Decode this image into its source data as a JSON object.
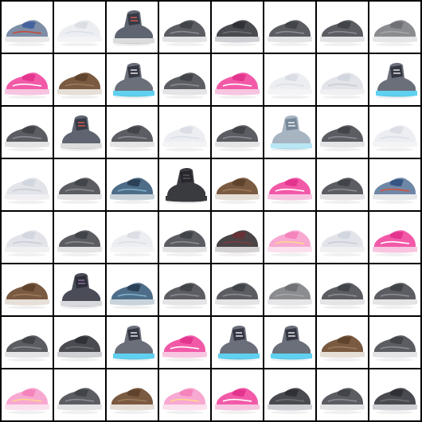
{
  "grid": {
    "rows": 8,
    "cols": 8,
    "background": "#000000",
    "cells": [
      [
        "sneaker-blue-white",
        "sneaker-white-faint",
        "sneaker-gray-red-high",
        "shoe-gray",
        "shoe-dark",
        "shoe-gray",
        "shoe-gray",
        "shoe-light-gray"
      ],
      [
        "sneaker-pink",
        "shoe-brown",
        "sneaker-high-cyan",
        "shoe-gray",
        "sneaker-pink",
        "sneaker-white-faint",
        "sneaker-white",
        "sneaker-high-cyan"
      ],
      [
        "shoe-gray",
        "sneaker-gray-red-high",
        "shoe-gray",
        "sneaker-white-faint",
        "shoe-gray",
        "sneaker-high-cyan-faint",
        "shoe-gray",
        "sneaker-white-faint"
      ],
      [
        "sneaker-white",
        "shoe-gray",
        "sneaker-blue-trail",
        "boot-dark",
        "shoe-brown",
        "sneaker-pink",
        "shoe-gray",
        "sneaker-blue-red"
      ],
      [
        "sneaker-white",
        "shoe-gray",
        "sneaker-white-faint",
        "shoe-gray",
        "shoe-dark-red",
        "sneaker-pink-faint",
        "sneaker-white",
        "sneaker-pink"
      ],
      [
        "shoe-brown",
        "boot-dark-high",
        "sneaker-blue-trail",
        "shoe-gray",
        "shoe-gray",
        "shoe-light-gray",
        "shoe-gray",
        "shoe-gray"
      ],
      [
        "shoe-gray",
        "shoe-dark",
        "sneaker-high-cyan",
        "sneaker-pink",
        "sneaker-high-cyan",
        "sneaker-high-cyan",
        "shoe-brown",
        "shoe-gray"
      ],
      [
        "sneaker-pink-faint",
        "shoe-gray",
        "shoe-brown",
        "sneaker-pink-faint",
        "sneaker-pink",
        "shoe-dark",
        "shoe-gray",
        "shoe-dark"
      ]
    ]
  },
  "palette": {
    "sneaker-blue-white": {
      "upper": "#7d8ea6",
      "accent": "#3c5a9c",
      "sole": "#e8e8ea",
      "trim": "#c84a3a"
    },
    "sneaker-white-faint": {
      "upper": "#eceef2",
      "accent": "#d8dbe2",
      "sole": "#f4f4f6",
      "trim": "#dcdfe6"
    },
    "sneaker-white": {
      "upper": "#e2e4ea",
      "accent": "#cfd3dc",
      "sole": "#f0f0f2",
      "trim": "#c9ccd4"
    },
    "sneaker-gray-red-high": {
      "upper": "#5e6470",
      "accent": "#2f3440",
      "sole": "#dcdcdc",
      "trim": "#d05a50"
    },
    "shoe-gray": {
      "upper": "#5b5d62",
      "accent": "#3d3f44",
      "sole": "#e4e4e6",
      "trim": "#8a8c92"
    },
    "shoe-dark": {
      "upper": "#4a4b50",
      "accent": "#2c2d31",
      "sole": "#cfd0d3",
      "trim": "#6d6e73"
    },
    "shoe-light-gray": {
      "upper": "#8a8c90",
      "accent": "#6a6c70",
      "sole": "#e6e6e8",
      "trim": "#a4a6aa"
    },
    "sneaker-pink": {
      "upper": "#f25aa8",
      "accent": "#e02f8a",
      "sole": "#f7c5e0",
      "trim": "#ffffff"
    },
    "sneaker-pink-faint": {
      "upper": "#f7a9d2",
      "accent": "#f47cb8",
      "sole": "#fbe0ee",
      "trim": "#ffd58a"
    },
    "shoe-brown": {
      "upper": "#7a5a40",
      "accent": "#5a3f2a",
      "sole": "#e6dfd8",
      "trim": "#9c7a5c"
    },
    "sneaker-high-cyan": {
      "upper": "#6b6f7a",
      "accent": "#2c2f38",
      "sole": "#5fd0f0",
      "trim": "#e6e6ea"
    },
    "sneaker-high-cyan-faint": {
      "upper": "#a7b4c2",
      "accent": "#6f8092",
      "sole": "#b8e6f4",
      "trim": "#eef0f2"
    },
    "sneaker-blue-trail": {
      "upper": "#4e6d88",
      "accent": "#26394f",
      "sole": "#c9d3da",
      "trim": "#7fb0c8"
    },
    "sneaker-blue-red": {
      "upper": "#6f87a6",
      "accent": "#2e4c7c",
      "sole": "#e6e8ea",
      "trim": "#d2533e"
    },
    "boot-dark": {
      "upper": "#3a3b3f",
      "accent": "#24252a",
      "sole": "#3a3b3f",
      "trim": "#55565b"
    },
    "boot-dark-high": {
      "upper": "#4a4d58",
      "accent": "#272a33",
      "sole": "#d9dadd",
      "trim": "#8a6ea0"
    },
    "shoe-dark-red": {
      "upper": "#4a4446",
      "accent": "#6a2f34",
      "sole": "#d4d1d2",
      "trim": "#7b3c40"
    }
  }
}
